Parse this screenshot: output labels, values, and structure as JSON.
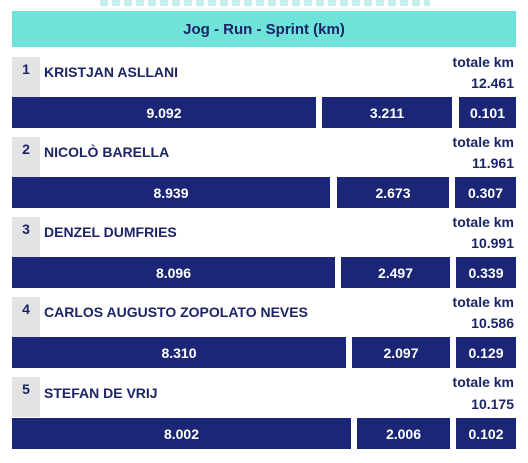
{
  "header": {
    "title": "Jog - Run - Sprint (km)"
  },
  "total_label": "totale km",
  "players": [
    {
      "rank": "1",
      "name": "KRISTJAN ASLLANI",
      "total": "12.461",
      "jog": "9.092",
      "run": "3.211",
      "sprint": "0.101"
    },
    {
      "rank": "2",
      "name": "NICOLÒ BARELLA",
      "total": "11.961",
      "jog": "8.939",
      "run": "2.673",
      "sprint": "0.307"
    },
    {
      "rank": "3",
      "name": "DENZEL DUMFRIES",
      "total": "10.991",
      "jog": "8.096",
      "run": "2.497",
      "sprint": "0.339"
    },
    {
      "rank": "4",
      "name": "CARLOS AUGUSTO ZOPOLATO NEVES",
      "total": "10.586",
      "jog": "8.310",
      "run": "2.097",
      "sprint": "0.129"
    },
    {
      "rank": "5",
      "name": "STEFAN DE VRIJ",
      "total": "10.175",
      "jog": "8.002",
      "run": "2.006",
      "sprint": "0.102"
    }
  ]
}
